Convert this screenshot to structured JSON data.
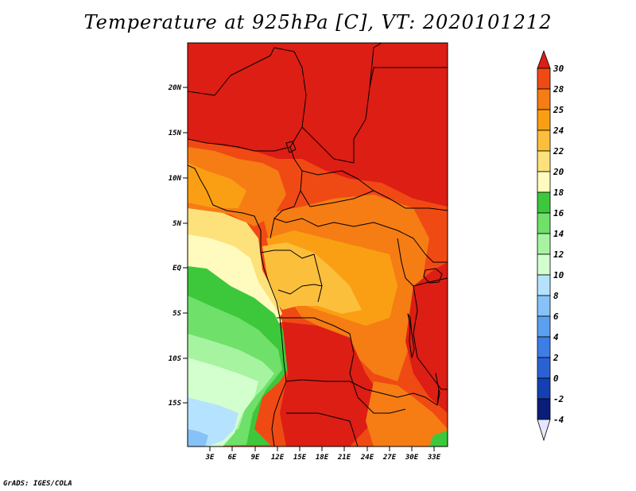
{
  "title": "Temperature at 925hPa [C], VT: 2020101212",
  "credit": "GrADS: IGES/COLA",
  "map": {
    "lat_labels": [
      "20N",
      "15N",
      "10N",
      "5N",
      "EQ",
      "5S",
      "10S",
      "15S"
    ],
    "lon_labels": [
      "3E",
      "6E",
      "9E",
      "12E",
      "15E",
      "18E",
      "21E",
      "24E",
      "27E",
      "30E",
      "33E"
    ]
  },
  "colorbar": {
    "labels": [
      "30",
      "28",
      "25",
      "24",
      "22",
      "20",
      "18",
      "16",
      "14",
      "12",
      "10",
      "8",
      "6",
      "4",
      "2",
      "0",
      "-2",
      "-4"
    ],
    "colors": [
      "#dc1e14",
      "#f04a14",
      "#f57d14",
      "#fa9f14",
      "#fbbf3c",
      "#fde17b",
      "#fffbbe",
      "#3dc83c",
      "#6fe06a",
      "#a6f3a0",
      "#d2ffcd",
      "#b5e3ff",
      "#86c2f7",
      "#5b9ff0",
      "#3c7ee6",
      "#2a62d4",
      "#1440b4",
      "#0a1e78"
    ]
  },
  "fields": {
    "palette": {
      "t30": "#dc1e14",
      "t28": "#f04a14",
      "t25": "#f57d14",
      "t24": "#fa9f14",
      "t22": "#fbbf3c",
      "t20": "#fde17b",
      "t18": "#fffbbe",
      "t16": "#3dc83c",
      "t14": "#6fe06a",
      "t12": "#a6f3a0",
      "t10": "#d2ffcd",
      "t8": "#b5e3ff",
      "t6": "#86c2f7"
    }
  }
}
